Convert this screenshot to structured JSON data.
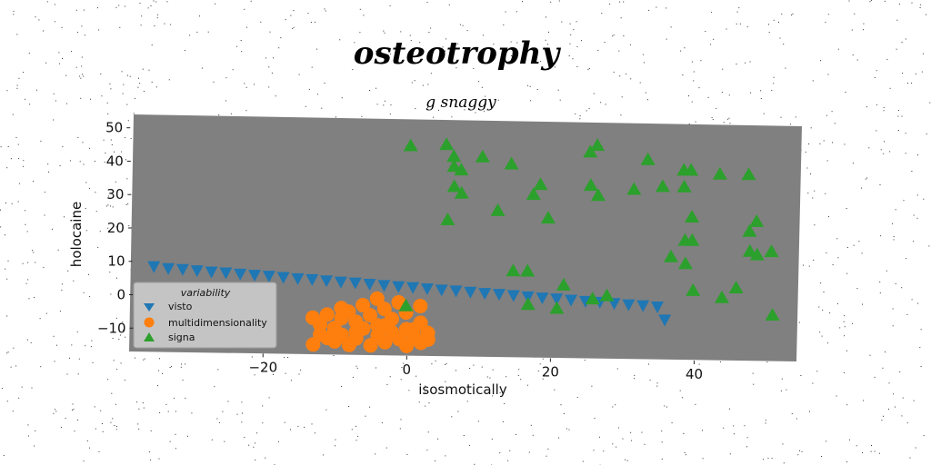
{
  "chart_data": {
    "type": "scatter",
    "title": "osteotrophy",
    "subtitle": "g snaggy",
    "xlabel": "isosmotically",
    "ylabel": "holocaine",
    "xlim": [
      -38,
      55
    ],
    "ylim": [
      -17,
      54
    ],
    "xticks": [
      -20,
      0,
      20,
      40
    ],
    "yticks": [
      -10,
      0,
      10,
      20,
      30,
      40,
      50
    ],
    "grid": false,
    "legend": {
      "title": "variability",
      "placement": "lower-left"
    },
    "colors": {
      "plot_bg": "#808080",
      "visto": "#1f77b4",
      "multidimensionality": "#ff7f0e",
      "signa": "#2ca02c"
    },
    "series": [
      {
        "name": "visto",
        "marker": "triangle-down",
        "points": [
          [
            -35,
            8.5
          ],
          [
            -33,
            8
          ],
          [
            -31,
            7.8
          ],
          [
            -29,
            7.5
          ],
          [
            -27,
            7.2
          ],
          [
            -25,
            7
          ],
          [
            -23,
            6.7
          ],
          [
            -21,
            6.4
          ],
          [
            -19,
            6.2
          ],
          [
            -17,
            5.9
          ],
          [
            -15,
            5.6
          ],
          [
            -13,
            5.4
          ],
          [
            -11,
            5.1
          ],
          [
            -9,
            4.8
          ],
          [
            -7,
            4.6
          ],
          [
            -5,
            4.3
          ],
          [
            -3,
            4
          ],
          [
            -1,
            3.7
          ],
          [
            1,
            3.5
          ],
          [
            3,
            3.2
          ],
          [
            5,
            2.9
          ],
          [
            7,
            2.7
          ],
          [
            9,
            2.4
          ],
          [
            11,
            2.1
          ],
          [
            13,
            1.9
          ],
          [
            15,
            1.6
          ],
          [
            17,
            1.3
          ],
          [
            19,
            1
          ],
          [
            21,
            0.8
          ],
          [
            23,
            0.5
          ],
          [
            25,
            0.2
          ],
          [
            27,
            0
          ],
          [
            29,
            -0.3
          ],
          [
            31,
            -0.6
          ],
          [
            33,
            -0.8
          ],
          [
            35,
            -1.1
          ],
          [
            36,
            -5
          ]
        ]
      },
      {
        "name": "multidimensionality",
        "marker": "circle",
        "points": [
          [
            -13,
            -6
          ],
          [
            -12,
            -8
          ],
          [
            -11,
            -5
          ],
          [
            -10,
            -9
          ],
          [
            -9,
            -6
          ],
          [
            -8,
            -4
          ],
          [
            -7,
            -7
          ],
          [
            -6,
            -2
          ],
          [
            -5,
            -5
          ],
          [
            -4,
            0
          ],
          [
            -3,
            -3
          ],
          [
            -2,
            -6
          ],
          [
            -1,
            -1
          ],
          [
            0,
            -4
          ],
          [
            1,
            -9
          ],
          [
            2,
            -7
          ],
          [
            -13,
            -14
          ],
          [
            -12,
            -11
          ],
          [
            -10,
            -13
          ],
          [
            -9,
            -11
          ],
          [
            -8,
            -14
          ],
          [
            -7,
            -12
          ],
          [
            -5,
            -14
          ],
          [
            -4,
            -11
          ],
          [
            -3,
            -13
          ],
          [
            -2,
            -10
          ],
          [
            -1,
            -12
          ],
          [
            0,
            -14
          ],
          [
            1,
            -11
          ],
          [
            2,
            -13
          ],
          [
            3,
            -10
          ],
          [
            3,
            -12
          ],
          [
            2,
            -2
          ],
          [
            -6,
            -9
          ],
          [
            -4,
            -8
          ],
          [
            -11,
            -12
          ],
          [
            -7,
            -10
          ],
          [
            -3,
            -8
          ],
          [
            0,
            -9
          ],
          [
            -9,
            -3
          ]
        ]
      },
      {
        "name": "signa",
        "marker": "triangle-up",
        "points": [
          [
            1,
            46
          ],
          [
            6,
            46.5
          ],
          [
            7,
            43
          ],
          [
            7,
            40
          ],
          [
            8,
            39
          ],
          [
            7,
            34
          ],
          [
            8,
            32
          ],
          [
            11,
            43
          ],
          [
            15,
            41
          ],
          [
            6,
            24
          ],
          [
            13,
            27
          ],
          [
            18,
            32
          ],
          [
            19,
            35
          ],
          [
            20,
            25
          ],
          [
            26,
            45
          ],
          [
            27,
            47
          ],
          [
            26,
            35
          ],
          [
            27,
            32
          ],
          [
            32,
            34
          ],
          [
            34,
            43
          ],
          [
            36,
            35
          ],
          [
            39,
            35
          ],
          [
            39,
            40
          ],
          [
            40,
            40
          ],
          [
            40,
            26
          ],
          [
            39,
            19
          ],
          [
            40,
            19
          ],
          [
            37,
            14
          ],
          [
            39,
            12
          ],
          [
            40,
            4
          ],
          [
            44,
            39
          ],
          [
            48,
            39
          ],
          [
            48,
            22
          ],
          [
            49,
            25
          ],
          [
            48,
            16
          ],
          [
            49,
            15
          ],
          [
            51,
            16
          ],
          [
            46,
            5
          ],
          [
            44,
            2
          ],
          [
            51,
            -3
          ],
          [
            15,
            9
          ],
          [
            17,
            9
          ],
          [
            22,
            5
          ],
          [
            26,
            1
          ],
          [
            28,
            2
          ],
          [
            17,
            -1
          ],
          [
            21,
            -2
          ],
          [
            0,
            -2
          ]
        ]
      }
    ]
  }
}
